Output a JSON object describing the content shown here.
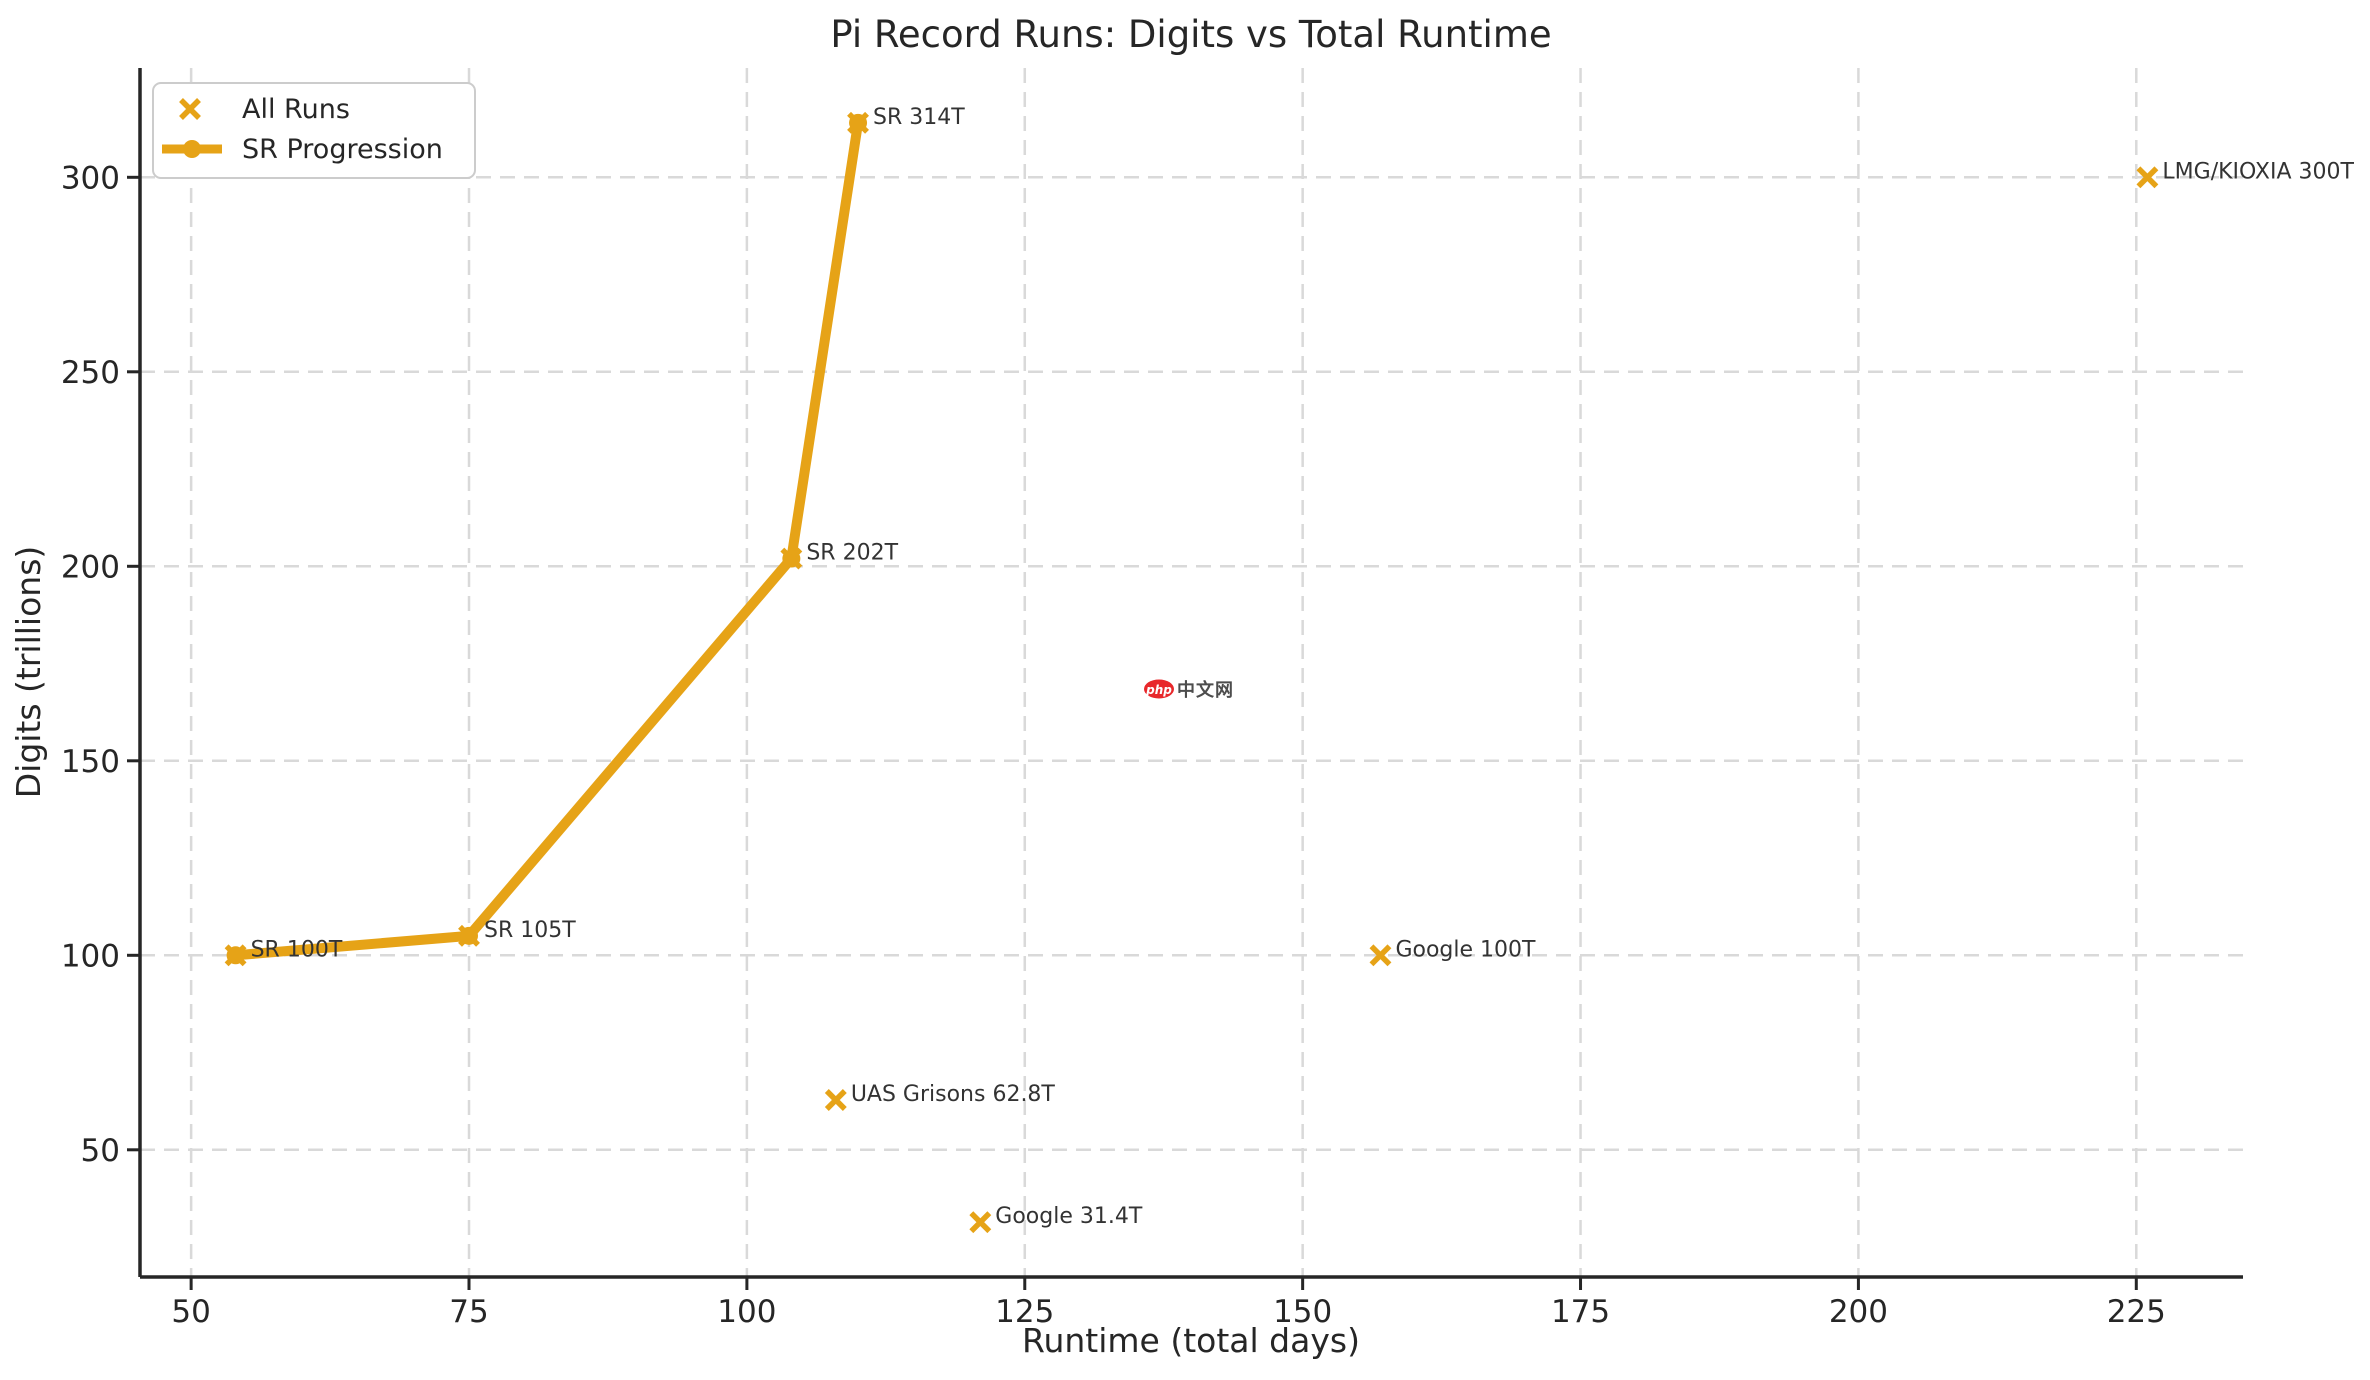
{
  "figure": {
    "background": "#ffffff"
  },
  "watermark": {
    "badge_text": "php",
    "site_text": "中文网",
    "badge_color": "#e8282b",
    "text_color": "#4d4d4d"
  },
  "chart_data": {
    "type": "scatter",
    "title": "Pi Record Runs: Digits vs Total Runtime",
    "xlabel": "Runtime (total days)",
    "ylabel": "Digits (trillions)",
    "xlim": [
      45.4,
      234.6
    ],
    "ylim": [
      17.3,
      328.1
    ],
    "x_ticks": [
      50,
      75,
      100,
      125,
      150,
      175,
      200,
      225
    ],
    "y_ticks": [
      50,
      100,
      150,
      200,
      250,
      300
    ],
    "grid": true,
    "grid_style": "dashed",
    "legend_position": "upper-left",
    "accent_color": "#E6A317",
    "text_color": "#262626",
    "annotation_color": "#333333",
    "series": [
      {
        "name": "All Runs",
        "type": "scatter",
        "marker": "x",
        "points": [
          {
            "label": "SR 100T",
            "x": 54,
            "y": 100
          },
          {
            "label": "SR 105T",
            "x": 75,
            "y": 105
          },
          {
            "label": "SR 202T",
            "x": 104,
            "y": 202
          },
          {
            "label": "SR 314T",
            "x": 110,
            "y": 314
          },
          {
            "label": "LMG/KIOXIA 300T",
            "x": 226,
            "y": 300
          },
          {
            "label": "Google 100T",
            "x": 157,
            "y": 100
          },
          {
            "label": "UAS Grisons 62.8T",
            "x": 108,
            "y": 62.8
          },
          {
            "label": "Google 31.4T",
            "x": 121,
            "y": 31.4
          }
        ]
      },
      {
        "name": "SR Progression",
        "type": "line",
        "marker": "o",
        "points": [
          {
            "x": 54,
            "y": 100
          },
          {
            "x": 75,
            "y": 105
          },
          {
            "x": 104,
            "y": 202
          },
          {
            "x": 110,
            "y": 314
          }
        ]
      }
    ]
  }
}
